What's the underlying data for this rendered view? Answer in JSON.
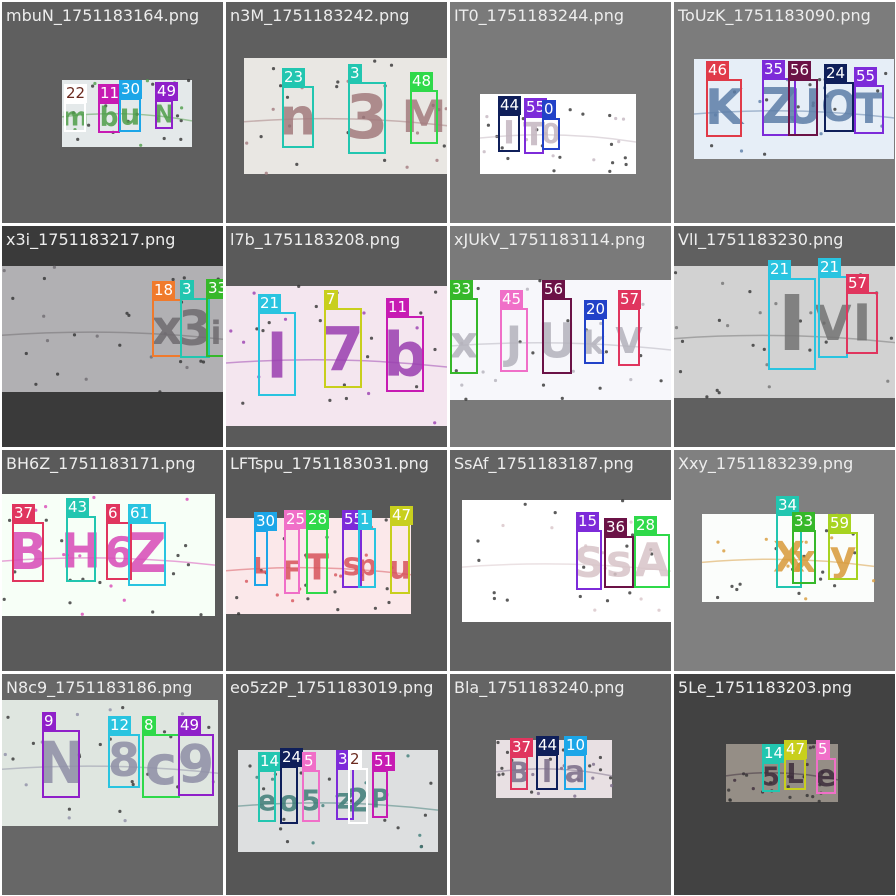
{
  "tiles": [
    {
      "filename": "mbuN_1751183164.png",
      "background": "#5f5f5f",
      "strip_color": "#e4e9ea",
      "text": "mbuN",
      "text_color": "#4f9e4a",
      "boxes": [
        {
          "label": "22",
          "color": "#ffffff",
          "tag_color": "#ffffff",
          "tag_text_color": "#6b2b20"
        },
        {
          "label": "11",
          "color": "#c71bb3",
          "tag_color": "#c71bb3"
        },
        {
          "label": "30",
          "color": "#1ca6e8",
          "tag_color": "#1ca6e8"
        },
        {
          "label": "49",
          "color": "#8f20c9",
          "tag_color": "#8f20c9"
        }
      ]
    },
    {
      "filename": "n3M_1751183242.png",
      "background": "#5f5f5f",
      "strip_color": "#e9e7e3",
      "text": "n3M",
      "text_color": "#a37b7e",
      "boxes": [
        {
          "label": "23",
          "color": "#22c6b0",
          "tag_color": "#22c6b0"
        },
        {
          "label": "3",
          "color": "#22c6b0",
          "tag_color": "#22c6b0"
        },
        {
          "label": "48",
          "color": "#2fd94a",
          "tag_color": "#2fd94a"
        }
      ]
    },
    {
      "filename": "IT0_1751183244.png",
      "background": "#7a7a7a",
      "strip_color": "#ffffff",
      "text": "IT0",
      "text_color": "#c4b6c0",
      "boxes": [
        {
          "label": "44",
          "color": "#0f1f5a",
          "tag_color": "#0f1f5a"
        },
        {
          "label": "55",
          "color": "#7d2bd9",
          "tag_color": "#7d2bd9"
        },
        {
          "label": "0",
          "color": "#2242c8",
          "tag_color": "#2242c8"
        }
      ]
    },
    {
      "filename": "ToUzK_1751183090.png",
      "background": "#7c7c7c",
      "strip_color": "#e6eef7",
      "text": "KZUOT",
      "text_color": "#5d7ea8",
      "boxes": [
        {
          "label": "46",
          "color": "#e03a48",
          "tag_color": "#e03a48"
        },
        {
          "label": "35",
          "color": "#7d2bd9",
          "tag_color": "#7d2bd9"
        },
        {
          "label": "56",
          "color": "#6b1246",
          "tag_color": "#6b1246"
        },
        {
          "label": "24",
          "color": "#0f1f5a",
          "tag_color": "#0f1f5a"
        },
        {
          "label": "55",
          "color": "#7d2bd9",
          "tag_color": "#7d2bd9"
        }
      ]
    },
    {
      "filename": "x3i_1751183217.png",
      "background": "#3a3a3a",
      "strip_color": "#b1b0b3",
      "text": "x3i",
      "text_color": "#6f6b70",
      "boxes": [
        {
          "label": "18",
          "color": "#f07a2c",
          "tag_color": "#f07a2c"
        },
        {
          "label": "3",
          "color": "#22c6b0",
          "tag_color": "#22c6b0"
        },
        {
          "label": "33",
          "color": "#36b82a",
          "tag_color": "#36b82a"
        }
      ]
    },
    {
      "filename": "l7b_1751183208.png",
      "background": "#5a5a5a",
      "strip_color": "#f4e6ef",
      "text": "l7b",
      "text_color": "#9a3fb0",
      "boxes": [
        {
          "label": "21",
          "color": "#29c4e0",
          "tag_color": "#29c4e0"
        },
        {
          "label": "7",
          "color": "#c8cf1d",
          "tag_color": "#c8cf1d"
        },
        {
          "label": "11",
          "color": "#c71bb3",
          "tag_color": "#c71bb3"
        }
      ]
    },
    {
      "filename": "xJUkV_1751183114.png",
      "background": "#7a7a7a",
      "strip_color": "#f7f7fb",
      "text": "xJUkV",
      "text_color": "#b4b2bc",
      "boxes": [
        {
          "label": "33",
          "color": "#36b82a",
          "tag_color": "#36b82a"
        },
        {
          "label": "45",
          "color": "#f06fc8",
          "tag_color": "#f06fc8"
        },
        {
          "label": "56",
          "color": "#6b1246",
          "tag_color": "#6b1246"
        },
        {
          "label": "20",
          "color": "#2242c8",
          "tag_color": "#2242c8"
        },
        {
          "label": "57",
          "color": "#e0355e",
          "tag_color": "#e0355e"
        }
      ]
    },
    {
      "filename": "VlI_1751183230.png",
      "background": "#606060",
      "strip_color": "#d2d2d2",
      "text": "IVI",
      "text_color": "#747474",
      "boxes": [
        {
          "label": "21",
          "color": "#29c4e0",
          "tag_color": "#29c4e0"
        },
        {
          "label": "21",
          "color": "#29c4e0",
          "tag_color": "#29c4e0"
        },
        {
          "label": "57",
          "color": "#e0355e",
          "tag_color": "#e0355e"
        }
      ]
    },
    {
      "filename": "BH6Z_1751183171.png",
      "background": "#5a5a5a",
      "strip_color": "#f7fff7",
      "text": "BH6Z",
      "text_color": "#d84ab7",
      "boxes": [
        {
          "label": "37",
          "color": "#e0355e",
          "tag_color": "#e0355e"
        },
        {
          "label": "43",
          "color": "#22c6b0",
          "tag_color": "#22c6b0"
        },
        {
          "label": "6",
          "color": "#e0355e",
          "tag_color": "#e0355e"
        },
        {
          "label": "61",
          "color": "#29c4e0",
          "tag_color": "#29c4e0"
        }
      ]
    },
    {
      "filename": "LFTspu_1751183031.png",
      "background": "#585858",
      "strip_color": "#fbe8ea",
      "text": "LFTspu",
      "text_color": "#d7545b",
      "boxes": [
        {
          "label": "30",
          "color": "#1ca6e8",
          "tag_color": "#1ca6e8"
        },
        {
          "label": "25",
          "color": "#f06fc8",
          "tag_color": "#f06fc8"
        },
        {
          "label": "28",
          "color": "#2fd94a",
          "tag_color": "#2fd94a"
        },
        {
          "label": "55",
          "color": "#7d2bd9",
          "tag_color": "#7d2bd9"
        },
        {
          "label": "1",
          "color": "#29c4e0",
          "tag_color": "#29c4e0"
        },
        {
          "label": "47",
          "color": "#c8cf1d",
          "tag_color": "#c8cf1d"
        }
      ]
    },
    {
      "filename": "SsAf_1751183187.png",
      "background": "#636363",
      "strip_color": "#ffffff",
      "text": "SsAf",
      "text_color": "#d8c4c8",
      "boxes": [
        {
          "label": "15",
          "color": "#7d2bd9",
          "tag_color": "#7d2bd9"
        },
        {
          "label": "36",
          "color": "#6b1246",
          "tag_color": "#6b1246"
        },
        {
          "label": "28",
          "color": "#2fd94a",
          "tag_color": "#2fd94a"
        }
      ]
    },
    {
      "filename": "Xxy_1751183239.png",
      "background": "#808080",
      "strip_color": "#fbfdfb",
      "text": "Xxy",
      "text_color": "#d89a3a",
      "boxes": [
        {
          "label": "34",
          "color": "#22c6b0",
          "tag_color": "#22c6b0"
        },
        {
          "label": "33",
          "color": "#36b82a",
          "tag_color": "#36b82a"
        },
        {
          "label": "59",
          "color": "#a7d321",
          "tag_color": "#a7d321"
        }
      ]
    },
    {
      "filename": "N8c9_1751183186.png",
      "background": "#676767",
      "strip_color": "#dfe6e0",
      "text": "N8c9",
      "text_color": "#8f8fa6",
      "boxes": [
        {
          "label": "9",
          "color": "#8f20c9",
          "tag_color": "#8f20c9"
        },
        {
          "label": "12",
          "color": "#29c4e0",
          "tag_color": "#29c4e0"
        },
        {
          "label": "8",
          "color": "#2fd94a",
          "tag_color": "#2fd94a"
        },
        {
          "label": "49",
          "color": "#8f20c9",
          "tag_color": "#8f20c9"
        }
      ]
    },
    {
      "filename": "eo5z2P_1751183019.png",
      "background": "#565656",
      "strip_color": "#dddfe0",
      "text": "eo5z2P",
      "text_color": "#3f7d78",
      "boxes": [
        {
          "label": "14",
          "color": "#22c6b0",
          "tag_color": "#22c6b0"
        },
        {
          "label": "24",
          "color": "#0f1f5a",
          "tag_color": "#0f1f5a"
        },
        {
          "label": "5",
          "color": "#f06fc8",
          "tag_color": "#f06fc8"
        },
        {
          "label": "32",
          "color": "#7d2bd9",
          "tag_color": "#7d2bd9"
        },
        {
          "label": "2",
          "color": "#ffffff",
          "tag_color": "#ffffff",
          "tag_text_color": "#6b2b20"
        },
        {
          "label": "51",
          "color": "#c71bb3",
          "tag_color": "#c71bb3"
        }
      ]
    },
    {
      "filename": "Bla_1751183240.png",
      "background": "#646464",
      "strip_color": "#e8e0e3",
      "text": "Bla",
      "text_color": "#7a6c88",
      "boxes": [
        {
          "label": "37",
          "color": "#e0355e",
          "tag_color": "#e0355e"
        },
        {
          "label": "44",
          "color": "#0f1f5a",
          "tag_color": "#0f1f5a"
        },
        {
          "label": "10",
          "color": "#1ca6e8",
          "tag_color": "#1ca6e8"
        }
      ]
    },
    {
      "filename": "5Le_1751183203.png",
      "background": "#424242",
      "strip_color": "#958e86",
      "text": "5Le",
      "text_color": "#3d2d3b",
      "boxes": [
        {
          "label": "14",
          "color": "#22c6b0",
          "tag_color": "#22c6b0"
        },
        {
          "label": "47",
          "color": "#c8cf1d",
          "tag_color": "#c8cf1d"
        },
        {
          "label": "5",
          "color": "#f06fc8",
          "tag_color": "#f06fc8"
        }
      ]
    }
  ]
}
